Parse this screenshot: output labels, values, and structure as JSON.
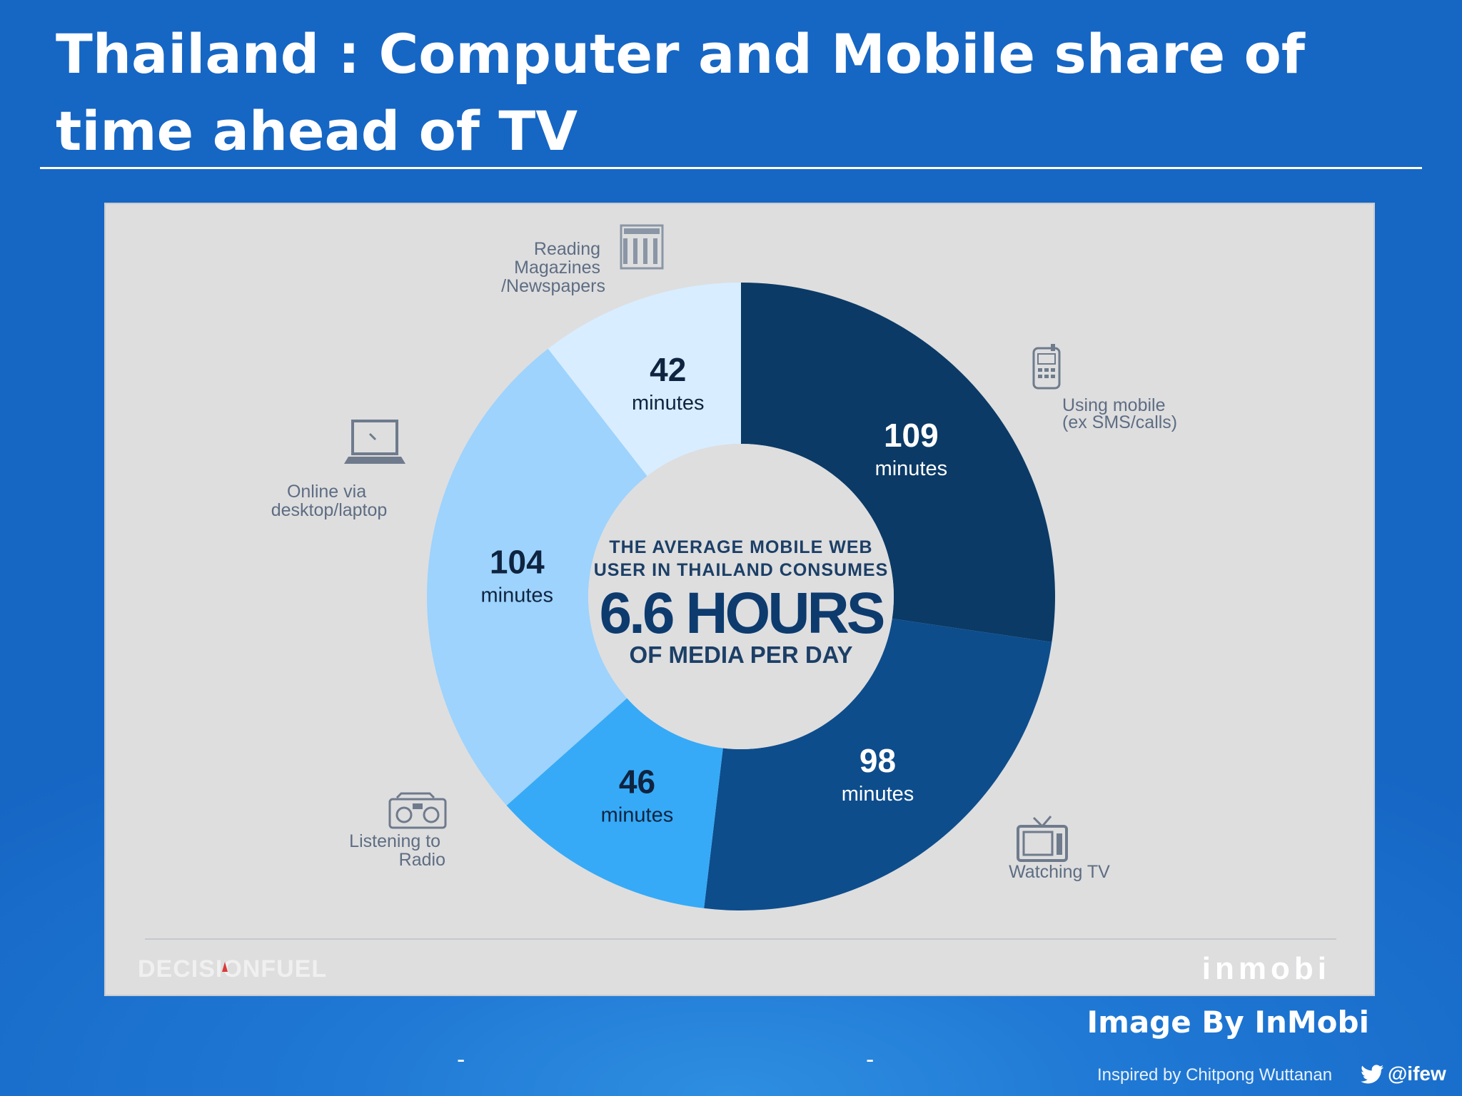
{
  "slide": {
    "title": "Thailand : Computer and Mobile share of time ahead of TV",
    "credit": "Image By InMobi",
    "inspired_by": "Inspired by Chitpong Wuttanan",
    "twitter_handle": "@ifew",
    "dash_left": "-",
    "dash_right": "-"
  },
  "chart_data": {
    "type": "pie",
    "style": "donut",
    "unit": "minutes",
    "center_text": {
      "line1": "THE AVERAGE MOBILE WEB",
      "line2": "USER IN THAILAND CONSUMES",
      "headline": "6.6 HOURS",
      "line3": "OF MEDIA PER DAY"
    },
    "segments": [
      {
        "label_lines": [
          "Using mobile",
          "(ex SMS/calls)"
        ],
        "value": 109,
        "value_text": "109",
        "unit_text": "minutes",
        "color": "#0b3a66",
        "text_color": "#ffffff",
        "icon": "mobile-phone-icon"
      },
      {
        "label_lines": [
          "Watching TV"
        ],
        "value": 98,
        "value_text": "98",
        "unit_text": "minutes",
        "color": "#0d4d8c",
        "text_color": "#ffffff",
        "icon": "tv-icon"
      },
      {
        "label_lines": [
          "Listening to",
          "Radio"
        ],
        "value": 46,
        "value_text": "46",
        "unit_text": "minutes",
        "color": "#36aaf7",
        "text_color": "#0f2440",
        "icon": "radio-icon"
      },
      {
        "label_lines": [
          "Online via",
          "desktop/laptop"
        ],
        "value": 104,
        "value_text": "104",
        "unit_text": "minutes",
        "color": "#9dd3fd",
        "text_color": "#0f2440",
        "icon": "laptop-icon"
      },
      {
        "label_lines": [
          "Reading",
          "Magazines",
          "/Newspapers"
        ],
        "value": 42,
        "value_text": "42",
        "unit_text": "minutes",
        "color": "#d8edff",
        "text_color": "#0f2440",
        "icon": "newspaper-icon"
      }
    ],
    "footer_left_logo": "DECISIONFUEL",
    "footer_right_logo": "inmobi"
  }
}
